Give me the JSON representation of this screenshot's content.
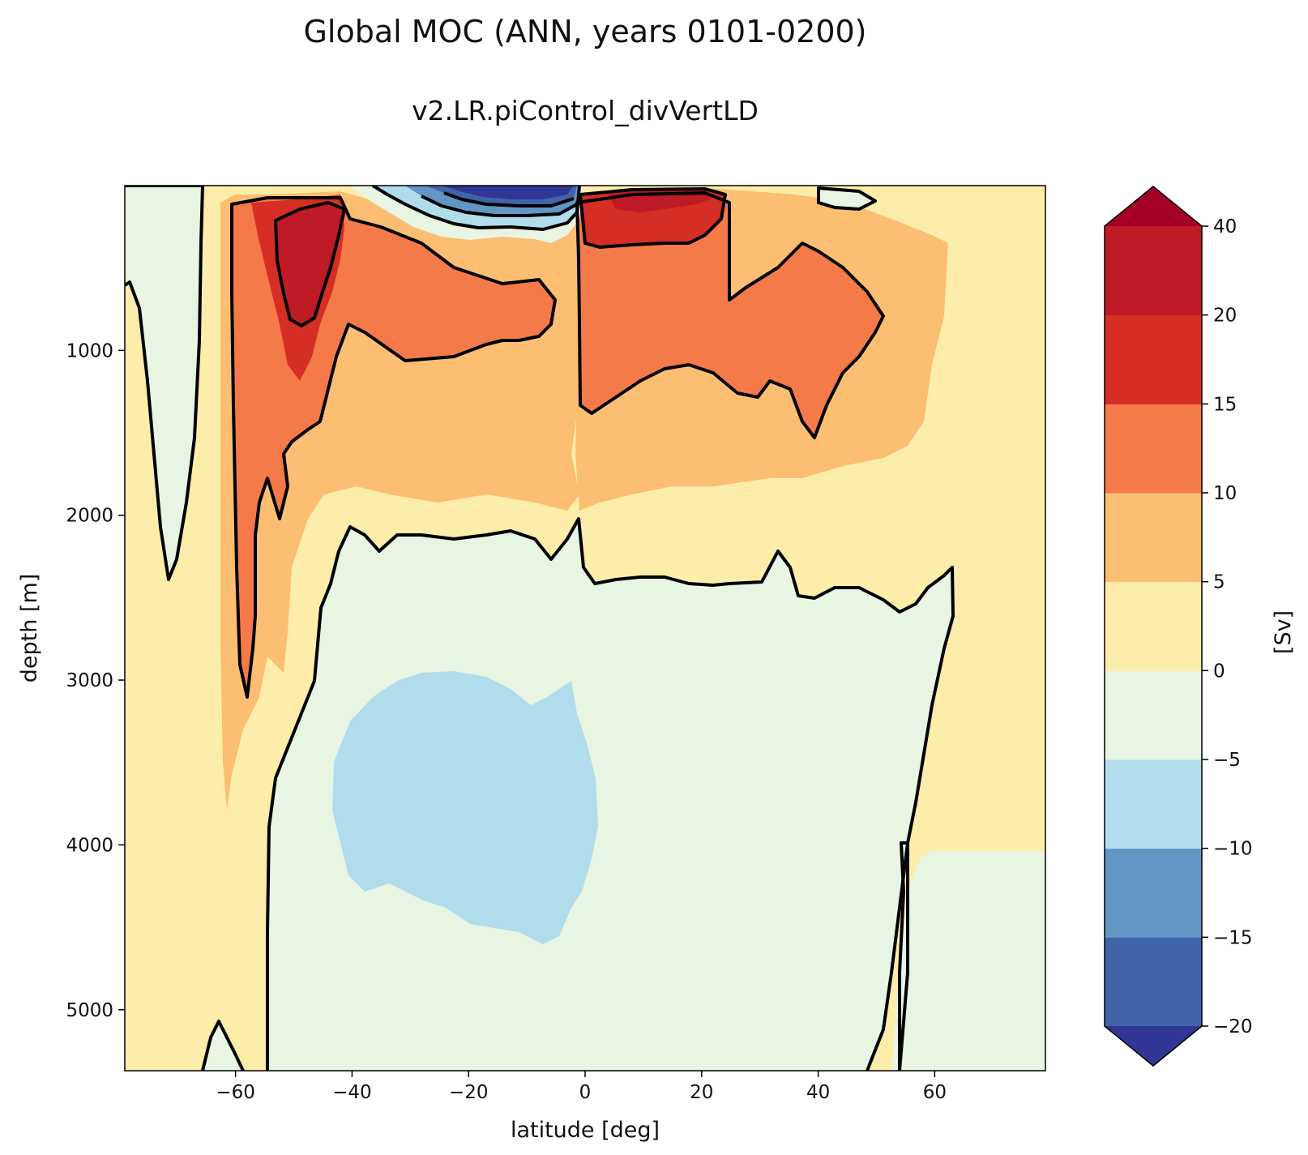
{
  "chart_data": {
    "type": "contourf",
    "title": "Global MOC (ANN, years 0101-0200)",
    "subtitle": "v2.LR.piControl_divVertLD",
    "xlabel": "latitude [deg]",
    "ylabel": "depth [m]",
    "xlim": [
      -79,
      79
    ],
    "ylim": [
      5370,
      0
    ],
    "x_ticks": [
      -60,
      -40,
      -20,
      0,
      20,
      40,
      60
    ],
    "x_tick_labels": [
      "−60",
      "−40",
      "−20",
      "0",
      "20",
      "40",
      "60"
    ],
    "y_ticks": [
      1000,
      2000,
      3000,
      4000,
      5000
    ],
    "y_tick_labels": [
      "1000",
      "2000",
      "3000",
      "4000",
      "5000"
    ],
    "colorbar": {
      "label": "[Sv]",
      "levels": [
        -20,
        -15,
        -10,
        -5,
        0,
        5,
        10,
        15,
        20,
        40
      ],
      "tick_labels": [
        "−20",
        "−15",
        "−10",
        "−5",
        "0",
        "5",
        "10",
        "15",
        "20",
        "40"
      ],
      "extend": "both",
      "colors": [
        "#4063a9",
        "#6196c5",
        "#b1dceb",
        "#e9f5e3",
        "#fdedaa",
        "#fcbe72",
        "#f57a4a",
        "#d42e25",
        "#be1b26"
      ],
      "under_color": "#313695",
      "over_color": "#a50026"
    },
    "regions": [
      {
        "name": "positive 0-5 Sv background",
        "range": [
          0,
          5
        ]
      },
      {
        "name": "southern-ocean negative cell",
        "range": [
          -5,
          0
        ],
        "lat": [
          -79,
          -68
        ],
        "depth": [
          0,
          2400
        ]
      },
      {
        "name": "deep negative (AABW) cell",
        "range": [
          -5,
          0
        ],
        "lat": [
          -55,
          63
        ],
        "depth": [
          2100,
          5370
        ]
      },
      {
        "name": "deep core",
        "range": [
          -10,
          -5
        ],
        "lat": [
          -43,
          6
        ],
        "depth": [
          2950,
          4700
        ]
      },
      {
        "name": "southern upper cell",
        "range": [
          15,
          20
        ],
        "lat": [
          -52,
          -40
        ],
        "depth": [
          100,
          900
        ]
      },
      {
        "name": "northern upper cell",
        "range": [
          15,
          20
        ],
        "lat": [
          2,
          24
        ],
        "depth": [
          30,
          450
        ]
      },
      {
        "name": "tropical surface cell",
        "range": [
          -20,
          -15
        ],
        "lat": [
          -25,
          0
        ],
        "depth": [
          0,
          80
        ]
      }
    ],
    "contour_levels": [
      -15,
      -10,
      -5,
      0,
      10,
      20
    ]
  }
}
